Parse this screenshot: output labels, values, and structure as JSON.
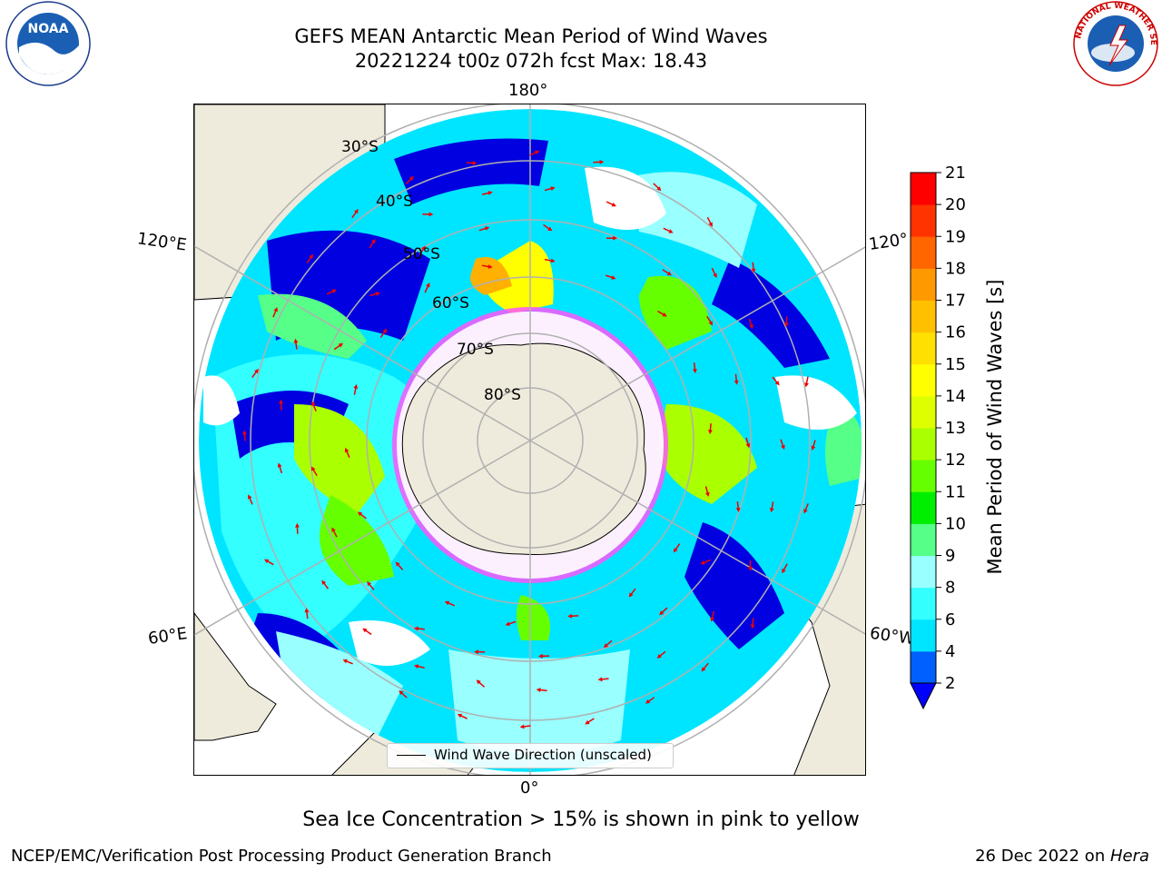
{
  "title": {
    "line1": "GEFS MEAN Antarctic Mean Period of Wind Waves",
    "line2": "20221224 t00z 072h fcst   Max: 18.43"
  },
  "logos": {
    "left": {
      "name": "noaa-logo",
      "text": "NOAA"
    },
    "right": {
      "name": "nws-logo",
      "text": "NATIONAL WEATHER SERVICE"
    }
  },
  "map": {
    "projection": "south-polar-stereographic",
    "lon_labels": {
      "top": "180°",
      "left_upper": "120°E",
      "right_upper": "120°",
      "left_lower": "60°E",
      "right_lower": "60°W",
      "bottom": "0°"
    },
    "lat_labels": [
      "30°S",
      "40°S",
      "50°S",
      "60°S",
      "70°S",
      "80°S"
    ],
    "colors": {
      "land": "#efebdc",
      "ocean_low": "#00e5ff",
      "ocean_mid": "#99ffff",
      "dark_blue": "#0000e0",
      "green": "#55ff55",
      "yellow": "#ffff00",
      "orange": "#ffb000",
      "ice_pink": "#ff55ff",
      "arrow": "#ee0000"
    }
  },
  "legend": {
    "label": "Wind Wave Direction (unscaled)"
  },
  "colorbar": {
    "label": "Mean Period of Wind Waves [s]",
    "ticks": [
      "2",
      "4",
      "6",
      "8",
      "9",
      "10",
      "11",
      "12",
      "13",
      "14",
      "15",
      "16",
      "17",
      "18",
      "19",
      "20",
      "21"
    ],
    "colors": [
      "#0060ff",
      "#00e5ff",
      "#33ffff",
      "#99ffff",
      "#55ff88",
      "#00ee00",
      "#66ff00",
      "#aaff00",
      "#ddff00",
      "#ffff00",
      "#ffe000",
      "#ffc000",
      "#ff9900",
      "#ff6600",
      "#ff3300",
      "#ff0000"
    ],
    "extend_color": "#0000ff"
  },
  "caption": "Sea Ice Concentration > 15% is shown in pink to yellow",
  "footer": {
    "left": "NCEP/EMC/Verification Post Processing Product Generation Branch",
    "right_date": "26 Dec 2022 on ",
    "right_host": "Hera"
  }
}
